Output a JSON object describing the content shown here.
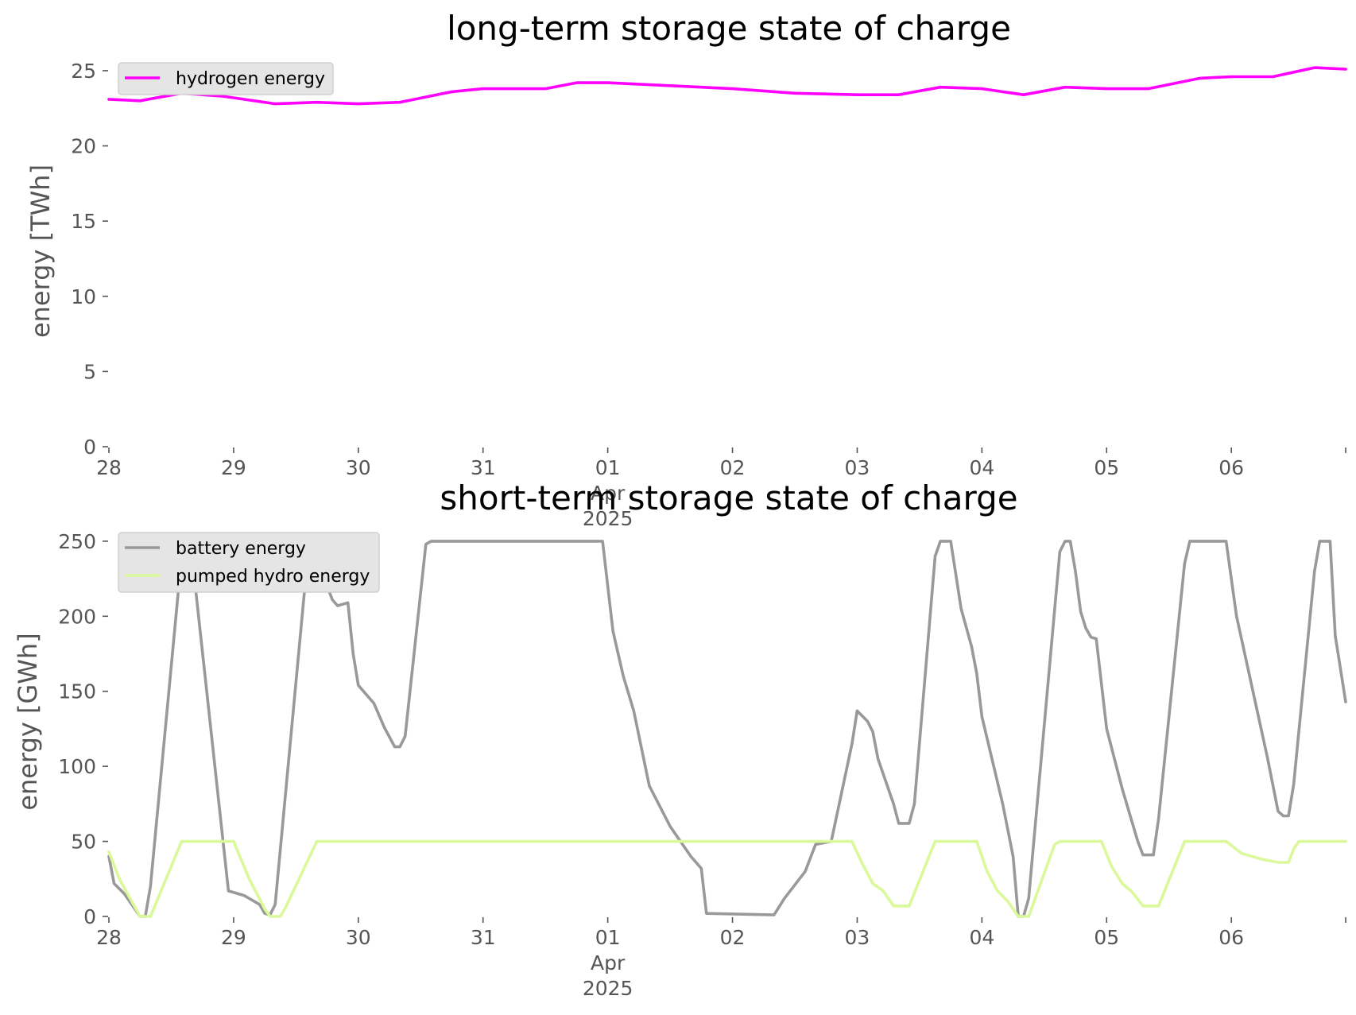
{
  "chart_data": [
    {
      "type": "line",
      "title": "long-term storage state of charge",
      "xlabel": "",
      "ylabel": "energy [TWh]",
      "ylim": [
        0,
        26
      ],
      "yticks": [
        0,
        5,
        10,
        15,
        20,
        25
      ],
      "xlim": [
        "2025-03-28",
        "2025-04-06T22:00"
      ],
      "xticks": [
        {
          "date": "2025-03-28",
          "label": "28"
        },
        {
          "date": "2025-03-29",
          "label": "29"
        },
        {
          "date": "2025-03-30",
          "label": "30"
        },
        {
          "date": "2025-03-31",
          "label": "31"
        },
        {
          "date": "2025-04-01",
          "label": "01",
          "sublabel": [
            "Apr",
            "2025"
          ]
        },
        {
          "date": "2025-04-02",
          "label": "02"
        },
        {
          "date": "2025-04-03",
          "label": "03"
        },
        {
          "date": "2025-04-04",
          "label": "04"
        },
        {
          "date": "2025-04-05",
          "label": "05"
        },
        {
          "date": "2025-04-06",
          "label": "06"
        }
      ],
      "grid": false,
      "legend": "top-left",
      "series": [
        {
          "name": "hydrogen energy",
          "color": "#ff00ff",
          "points": [
            [
              "2025-03-28T00:00",
              23.1
            ],
            [
              "2025-03-28T06:00",
              23.0
            ],
            [
              "2025-03-28T14:00",
              23.5
            ],
            [
              "2025-03-28T22:00",
              23.3
            ],
            [
              "2025-03-29T08:00",
              22.8
            ],
            [
              "2025-03-29T16:00",
              22.9
            ],
            [
              "2025-03-30T00:00",
              22.8
            ],
            [
              "2025-03-30T08:00",
              22.9
            ],
            [
              "2025-03-30T18:00",
              23.6
            ],
            [
              "2025-03-31T00:00",
              23.8
            ],
            [
              "2025-03-31T12:00",
              23.8
            ],
            [
              "2025-03-31T18:00",
              24.2
            ],
            [
              "2025-04-01T00:00",
              24.2
            ],
            [
              "2025-04-01T12:00",
              24.0
            ],
            [
              "2025-04-02T00:00",
              23.8
            ],
            [
              "2025-04-02T12:00",
              23.5
            ],
            [
              "2025-04-03T00:00",
              23.4
            ],
            [
              "2025-04-03T08:00",
              23.4
            ],
            [
              "2025-04-03T16:00",
              23.9
            ],
            [
              "2025-04-04T00:00",
              23.8
            ],
            [
              "2025-04-04T08:00",
              23.4
            ],
            [
              "2025-04-04T16:00",
              23.9
            ],
            [
              "2025-04-05T00:00",
              23.8
            ],
            [
              "2025-04-05T08:00",
              23.8
            ],
            [
              "2025-04-05T18:00",
              24.5
            ],
            [
              "2025-04-06T00:00",
              24.6
            ],
            [
              "2025-04-06T08:00",
              24.6
            ],
            [
              "2025-04-06T16:00",
              25.2
            ],
            [
              "2025-04-06T22:00",
              25.1
            ]
          ]
        }
      ]
    },
    {
      "type": "line",
      "title": "short-term storage state of charge",
      "xlabel": "",
      "ylabel": "energy [GWh]",
      "ylim": [
        0,
        260
      ],
      "yticks": [
        0,
        50,
        100,
        150,
        200,
        250
      ],
      "xlim": [
        "2025-03-28",
        "2025-04-06T22:00"
      ],
      "xticks": [
        {
          "date": "2025-03-28",
          "label": "28"
        },
        {
          "date": "2025-03-29",
          "label": "29"
        },
        {
          "date": "2025-03-30",
          "label": "30"
        },
        {
          "date": "2025-03-31",
          "label": "31"
        },
        {
          "date": "2025-04-01",
          "label": "01",
          "sublabel": [
            "Apr",
            "2025"
          ]
        },
        {
          "date": "2025-04-02",
          "label": "02"
        },
        {
          "date": "2025-04-03",
          "label": "03"
        },
        {
          "date": "2025-04-04",
          "label": "04"
        },
        {
          "date": "2025-04-05",
          "label": "05"
        },
        {
          "date": "2025-04-06",
          "label": "06"
        }
      ],
      "grid": false,
      "legend": "top-left",
      "series": [
        {
          "name": "battery energy",
          "color": "#999999",
          "points": [
            [
              "2025-03-28T00:00",
              40
            ],
            [
              "2025-03-28T01:00",
              22
            ],
            [
              "2025-03-28T03:00",
              15
            ],
            [
              "2025-03-28T05:00",
              5
            ],
            [
              "2025-03-28T06:00",
              0
            ],
            [
              "2025-03-28T07:00",
              0
            ],
            [
              "2025-03-28T08:00",
              20
            ],
            [
              "2025-03-28T14:00",
              240
            ],
            [
              "2025-03-28T15:00",
              250
            ],
            [
              "2025-03-28T16:00",
              240
            ],
            [
              "2025-03-28T23:00",
              17
            ],
            [
              "2025-03-29T02:00",
              14
            ],
            [
              "2025-03-29T05:00",
              8
            ],
            [
              "2025-03-29T06:00",
              2
            ],
            [
              "2025-03-29T07:00",
              1
            ],
            [
              "2025-03-29T08:00",
              8
            ],
            [
              "2025-03-29T14:00",
              230
            ],
            [
              "2025-03-29T15:00",
              250
            ],
            [
              "2025-03-29T16:00",
              250
            ],
            [
              "2025-03-29T18:00",
              220
            ],
            [
              "2025-03-29T19:00",
              211
            ],
            [
              "2025-03-29T20:00",
              207
            ],
            [
              "2025-03-29T22:00",
              209
            ],
            [
              "2025-03-29T23:00",
              175
            ],
            [
              "2025-03-30T00:00",
              154
            ],
            [
              "2025-03-30T03:00",
              142
            ],
            [
              "2025-03-30T05:00",
              126
            ],
            [
              "2025-03-30T07:00",
              113
            ],
            [
              "2025-03-30T08:00",
              113
            ],
            [
              "2025-03-30T09:00",
              120
            ],
            [
              "2025-03-30T13:00",
              248
            ],
            [
              "2025-03-30T14:00",
              250
            ],
            [
              "2025-03-31T23:00",
              250
            ],
            [
              "2025-04-01T01:00",
              190
            ],
            [
              "2025-04-01T03:00",
              160
            ],
            [
              "2025-04-01T05:00",
              137
            ],
            [
              "2025-04-01T08:00",
              87
            ],
            [
              "2025-04-01T12:00",
              60
            ],
            [
              "2025-04-01T16:00",
              40
            ],
            [
              "2025-04-01T18:00",
              32
            ],
            [
              "2025-04-01T19:00",
              2
            ],
            [
              "2025-04-02T08:00",
              1
            ],
            [
              "2025-04-02T10:00",
              12
            ],
            [
              "2025-04-02T14:00",
              30
            ],
            [
              "2025-04-02T16:00",
              48
            ],
            [
              "2025-04-02T19:00",
              50
            ],
            [
              "2025-04-02T23:00",
              115
            ],
            [
              "2025-04-03T00:00",
              137
            ],
            [
              "2025-04-03T02:00",
              130
            ],
            [
              "2025-04-03T03:00",
              123
            ],
            [
              "2025-04-03T04:00",
              105
            ],
            [
              "2025-04-03T07:00",
              75
            ],
            [
              "2025-04-03T08:00",
              62
            ],
            [
              "2025-04-03T10:00",
              62
            ],
            [
              "2025-04-03T11:00",
              75
            ],
            [
              "2025-04-03T15:00",
              240
            ],
            [
              "2025-04-03T16:00",
              250
            ],
            [
              "2025-04-03T18:00",
              250
            ],
            [
              "2025-04-03T20:00",
              205
            ],
            [
              "2025-04-03T22:00",
              180
            ],
            [
              "2025-04-03T23:00",
              162
            ],
            [
              "2025-04-04T00:00",
              133
            ],
            [
              "2025-04-04T04:00",
              75
            ],
            [
              "2025-04-04T06:00",
              40
            ],
            [
              "2025-04-04T07:00",
              0
            ],
            [
              "2025-04-04T08:00",
              0
            ],
            [
              "2025-04-04T09:00",
              12
            ],
            [
              "2025-04-04T15:00",
              243
            ],
            [
              "2025-04-04T16:00",
              250
            ],
            [
              "2025-04-04T17:00",
              250
            ],
            [
              "2025-04-04T18:00",
              230
            ],
            [
              "2025-04-04T19:00",
              203
            ],
            [
              "2025-04-04T20:00",
              192
            ],
            [
              "2025-04-04T21:00",
              186
            ],
            [
              "2025-04-04T22:00",
              185
            ],
            [
              "2025-04-05T00:00",
              125
            ],
            [
              "2025-04-05T03:00",
              85
            ],
            [
              "2025-04-05T06:00",
              50
            ],
            [
              "2025-04-05T07:00",
              41
            ],
            [
              "2025-04-05T09:00",
              41
            ],
            [
              "2025-04-05T10:00",
              65
            ],
            [
              "2025-04-05T15:00",
              235
            ],
            [
              "2025-04-05T16:00",
              250
            ],
            [
              "2025-04-05T23:00",
              250
            ],
            [
              "2025-04-06T01:00",
              200
            ],
            [
              "2025-04-06T07:00",
              105
            ],
            [
              "2025-04-06T09:00",
              70
            ],
            [
              "2025-04-06T10:00",
              67
            ],
            [
              "2025-04-06T11:00",
              67
            ],
            [
              "2025-04-06T12:00",
              88
            ],
            [
              "2025-04-06T16:00",
              230
            ],
            [
              "2025-04-06T17:00",
              250
            ],
            [
              "2025-04-06T19:00",
              250
            ],
            [
              "2025-04-06T20:00",
              187
            ],
            [
              "2025-04-06T22:00",
              143
            ]
          ]
        },
        {
          "name": "pumped hydro energy",
          "color": "#d9f99a",
          "points": [
            [
              "2025-03-28T00:00",
              43
            ],
            [
              "2025-03-28T02:00",
              25
            ],
            [
              "2025-03-28T06:00",
              0
            ],
            [
              "2025-03-28T08:00",
              0
            ],
            [
              "2025-03-28T14:00",
              50
            ],
            [
              "2025-03-29T00:00",
              50
            ],
            [
              "2025-03-29T03:00",
              25
            ],
            [
              "2025-03-29T06:00",
              5
            ],
            [
              "2025-03-29T07:00",
              0
            ],
            [
              "2025-03-29T09:00",
              0
            ],
            [
              "2025-03-29T10:00",
              6
            ],
            [
              "2025-03-29T16:00",
              50
            ],
            [
              "2025-04-02T23:00",
              50
            ],
            [
              "2025-04-03T01:00",
              35
            ],
            [
              "2025-04-03T03:00",
              22
            ],
            [
              "2025-04-03T05:00",
              17
            ],
            [
              "2025-04-03T07:00",
              7
            ],
            [
              "2025-04-03T10:00",
              7
            ],
            [
              "2025-04-03T15:00",
              50
            ],
            [
              "2025-04-03T23:00",
              50
            ],
            [
              "2025-04-04T01:00",
              30
            ],
            [
              "2025-04-04T03:00",
              17
            ],
            [
              "2025-04-04T05:00",
              10
            ],
            [
              "2025-04-04T07:00",
              0
            ],
            [
              "2025-04-04T09:00",
              0
            ],
            [
              "2025-04-04T14:00",
              48
            ],
            [
              "2025-04-04T15:00",
              50
            ],
            [
              "2025-04-04T23:00",
              50
            ],
            [
              "2025-04-05T01:00",
              33
            ],
            [
              "2025-04-05T03:00",
              22
            ],
            [
              "2025-04-05T05:00",
              16
            ],
            [
              "2025-04-05T07:00",
              7
            ],
            [
              "2025-04-05T10:00",
              7
            ],
            [
              "2025-04-05T15:00",
              50
            ],
            [
              "2025-04-05T23:00",
              50
            ],
            [
              "2025-04-06T02:00",
              42
            ],
            [
              "2025-04-06T06:00",
              38
            ],
            [
              "2025-04-06T09:00",
              36
            ],
            [
              "2025-04-06T11:00",
              36
            ],
            [
              "2025-04-06T12:00",
              45
            ],
            [
              "2025-04-06T13:00",
              50
            ],
            [
              "2025-04-06T22:00",
              50
            ]
          ]
        }
      ]
    }
  ]
}
